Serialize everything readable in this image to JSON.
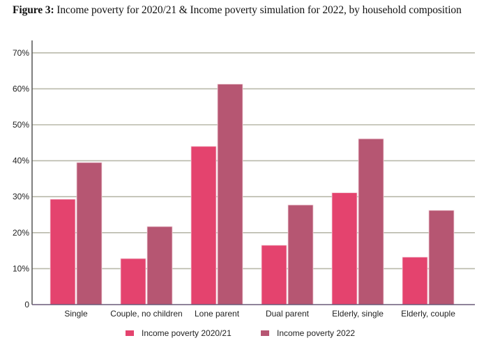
{
  "figure": {
    "label": "Figure 3:",
    "caption": "Income poverty for 2020/21 & Income poverty simulation for 2022, by household composition"
  },
  "colors": {
    "series_2020": "#E4436E",
    "series_2022": "#B65672",
    "grid": "#B9B9AA",
    "axis": "#555555"
  },
  "chart_data": {
    "type": "bar",
    "title": "Income poverty for 2020/21 & Income poverty simulation for 2022, by household composition",
    "xlabel": "",
    "ylabel": "",
    "categories": [
      "Single",
      "Couple, no children",
      "Lone parent",
      "Dual parent",
      "Elderly, single",
      "Elderly, couple"
    ],
    "series": [
      {
        "name": "Income poverty 2020/21",
        "values": [
          29.3,
          12.8,
          44.0,
          16.5,
          31.1,
          13.2
        ]
      },
      {
        "name": "Income poverty 2022",
        "values": [
          39.5,
          21.7,
          61.3,
          27.7,
          46.1,
          26.2
        ]
      }
    ],
    "ylim": [
      0,
      70
    ],
    "yticks": [
      0,
      10,
      20,
      30,
      40,
      50,
      60,
      70
    ],
    "ytick_labels": [
      "0",
      "10%",
      "20%",
      "30%",
      "40%",
      "50%",
      "60%",
      "70%"
    ],
    "grid": true,
    "legend_position": "bottom"
  }
}
